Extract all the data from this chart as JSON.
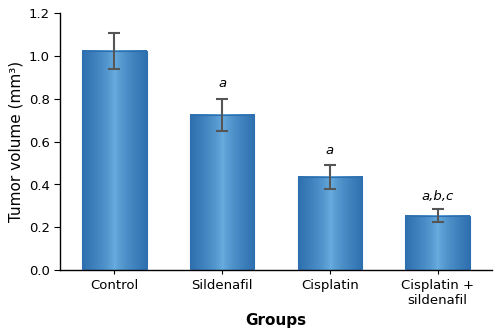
{
  "categories": [
    "Control",
    "Sildenafil",
    "Cisplatin",
    "Cisplatin +\nsildenafil"
  ],
  "values": [
    1.025,
    0.725,
    0.435,
    0.255
  ],
  "errors": [
    0.085,
    0.075,
    0.055,
    0.032
  ],
  "annotations": [
    "",
    "a",
    "a",
    "a,b,c"
  ],
  "bar_color_center": "#6aaee0",
  "bar_color_edge": "#2e6faf",
  "error_color": "#555555",
  "xlabel": "Groups",
  "ylabel": "Tumor volume (mm³)",
  "ylim": [
    0,
    1.2
  ],
  "yticks": [
    0.0,
    0.2,
    0.4,
    0.6,
    0.8,
    1.0,
    1.2
  ],
  "axis_label_fontsize": 11,
  "tick_fontsize": 9.5,
  "annotation_fontsize": 9.5,
  "bar_width": 0.6,
  "background_color": "#ffffff",
  "ann_offsets": [
    0.03,
    0.04,
    0.04,
    0.025
  ]
}
